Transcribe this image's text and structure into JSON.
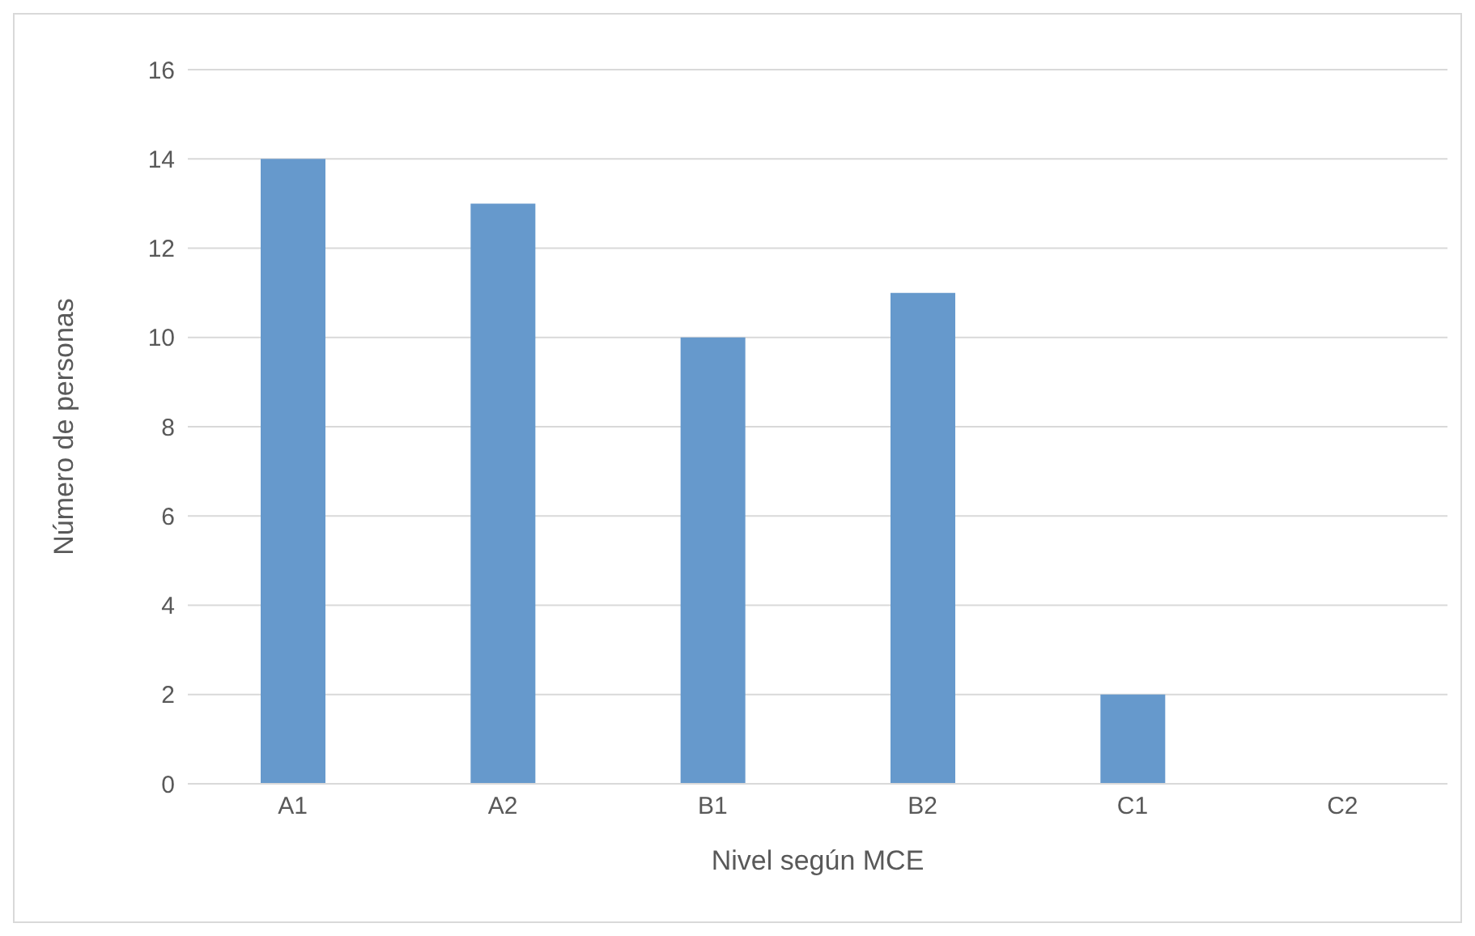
{
  "chart_data": {
    "type": "bar",
    "xlabel": "Nivel según MCE",
    "ylabel": "Número de personas",
    "categories": [
      "A1",
      "A2",
      "B1",
      "B2",
      "C1",
      "C2"
    ],
    "values": [
      14,
      13,
      10,
      11,
      2,
      0
    ],
    "color": "#6699cc",
    "ylim": [
      0,
      16
    ],
    "yticks": [
      0,
      2,
      4,
      6,
      8,
      10,
      12,
      14,
      16
    ],
    "grid": "y",
    "legend": false
  }
}
